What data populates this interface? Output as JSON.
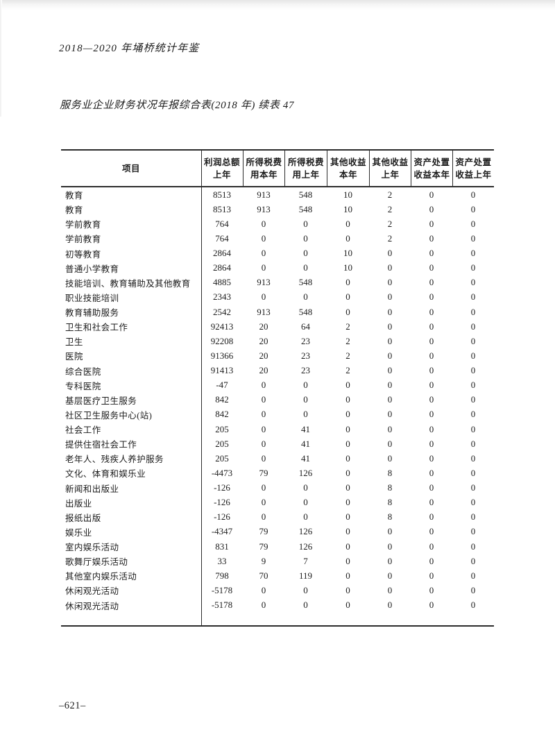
{
  "page": {
    "yearbook_header": "2018—2020 年埇桥统计年鉴",
    "table_title": "服务业企业财务状况年报综合表(2018 年) 续表 47",
    "page_number": "–621–"
  },
  "table": {
    "columns": [
      {
        "line1": "项目",
        "line2": ""
      },
      {
        "line1": "利润总额",
        "line2": "上年"
      },
      {
        "line1": "所得税费",
        "line2": "用本年"
      },
      {
        "line1": "所得税费",
        "line2": "用上年"
      },
      {
        "line1": "其他收益",
        "line2": "本年"
      },
      {
        "line1": "其他收益",
        "line2": "上年"
      },
      {
        "line1": "资产处置",
        "line2": "收益本年"
      },
      {
        "line1": "资产处置",
        "line2": "收益上年"
      }
    ],
    "rows": [
      {
        "label": "教育",
        "values": [
          "8513",
          "913",
          "548",
          "10",
          "2",
          "0",
          "0"
        ]
      },
      {
        "label": "教育",
        "values": [
          "8513",
          "913",
          "548",
          "10",
          "2",
          "0",
          "0"
        ]
      },
      {
        "label": "学前教育",
        "values": [
          "764",
          "0",
          "0",
          "0",
          "2",
          "0",
          "0"
        ]
      },
      {
        "label": "学前教育",
        "values": [
          "764",
          "0",
          "0",
          "0",
          "2",
          "0",
          "0"
        ]
      },
      {
        "label": "初等教育",
        "values": [
          "2864",
          "0",
          "0",
          "10",
          "0",
          "0",
          "0"
        ]
      },
      {
        "label": "普通小学教育",
        "values": [
          "2864",
          "0",
          "0",
          "10",
          "0",
          "0",
          "0"
        ]
      },
      {
        "label": "技能培训、教育辅助及其他教育",
        "values": [
          "4885",
          "913",
          "548",
          "0",
          "0",
          "0",
          "0"
        ]
      },
      {
        "label": "职业技能培训",
        "values": [
          "2343",
          "0",
          "0",
          "0",
          "0",
          "0",
          "0"
        ]
      },
      {
        "label": "教育辅助服务",
        "values": [
          "2542",
          "913",
          "548",
          "0",
          "0",
          "0",
          "0"
        ]
      },
      {
        "label": "卫生和社会工作",
        "values": [
          "92413",
          "20",
          "64",
          "2",
          "0",
          "0",
          "0"
        ]
      },
      {
        "label": "卫生",
        "values": [
          "92208",
          "20",
          "23",
          "2",
          "0",
          "0",
          "0"
        ]
      },
      {
        "label": "医院",
        "values": [
          "91366",
          "20",
          "23",
          "2",
          "0",
          "0",
          "0"
        ]
      },
      {
        "label": "综合医院",
        "values": [
          "91413",
          "20",
          "23",
          "2",
          "0",
          "0",
          "0"
        ]
      },
      {
        "label": "专科医院",
        "values": [
          "-47",
          "0",
          "0",
          "0",
          "0",
          "0",
          "0"
        ]
      },
      {
        "label": "基层医疗卫生服务",
        "values": [
          "842",
          "0",
          "0",
          "0",
          "0",
          "0",
          "0"
        ]
      },
      {
        "label": "社区卫生服务中心(站)",
        "values": [
          "842",
          "0",
          "0",
          "0",
          "0",
          "0",
          "0"
        ]
      },
      {
        "label": "社会工作",
        "values": [
          "205",
          "0",
          "41",
          "0",
          "0",
          "0",
          "0"
        ]
      },
      {
        "label": "提供住宿社会工作",
        "values": [
          "205",
          "0",
          "41",
          "0",
          "0",
          "0",
          "0"
        ]
      },
      {
        "label": "老年人、残疾人养护服务",
        "values": [
          "205",
          "0",
          "41",
          "0",
          "0",
          "0",
          "0"
        ]
      },
      {
        "label": "文化、体育和娱乐业",
        "values": [
          "-4473",
          "79",
          "126",
          "0",
          "8",
          "0",
          "0"
        ]
      },
      {
        "label": "新闻和出版业",
        "values": [
          "-126",
          "0",
          "0",
          "0",
          "8",
          "0",
          "0"
        ]
      },
      {
        "label": "出版业",
        "values": [
          "-126",
          "0",
          "0",
          "0",
          "8",
          "0",
          "0"
        ]
      },
      {
        "label": "报纸出版",
        "values": [
          "-126",
          "0",
          "0",
          "0",
          "8",
          "0",
          "0"
        ]
      },
      {
        "label": "娱乐业",
        "values": [
          "-4347",
          "79",
          "126",
          "0",
          "0",
          "0",
          "0"
        ]
      },
      {
        "label": "室内娱乐活动",
        "values": [
          "831",
          "79",
          "126",
          "0",
          "0",
          "0",
          "0"
        ]
      },
      {
        "label": "歌舞厅娱乐活动",
        "values": [
          "33",
          "9",
          "7",
          "0",
          "0",
          "0",
          "0"
        ]
      },
      {
        "label": "其他室内娱乐活动",
        "values": [
          "798",
          "70",
          "119",
          "0",
          "0",
          "0",
          "0"
        ]
      },
      {
        "label": "休闲观光活动",
        "values": [
          "-5178",
          "0",
          "0",
          "0",
          "0",
          "0",
          "0"
        ]
      },
      {
        "label": "休闲观光活动",
        "values": [
          "-5178",
          "0",
          "0",
          "0",
          "0",
          "0",
          "0"
        ]
      }
    ]
  }
}
